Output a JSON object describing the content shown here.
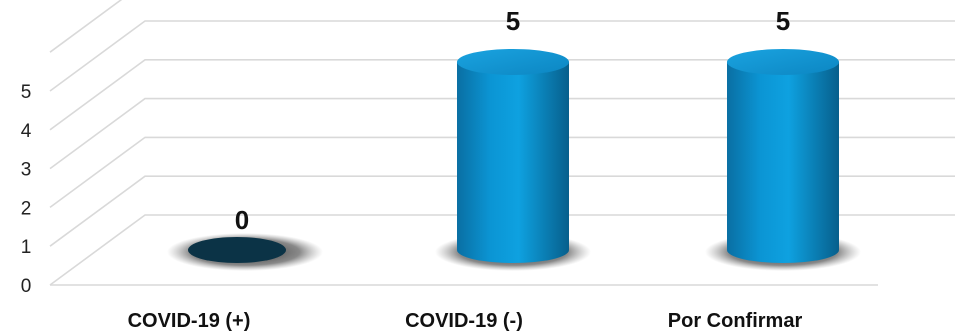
{
  "chart_data": {
    "type": "bar",
    "style": "3d-cylinder",
    "categories": [
      "COVID-19 (+)",
      "COVID-19 (-)",
      "Por Confirmar"
    ],
    "values": [
      0,
      5,
      5
    ],
    "data_labels": [
      "0",
      "5",
      "5"
    ],
    "y_ticks": [
      "0",
      "1",
      "2",
      "3",
      "4",
      "5"
    ],
    "ylim": [
      0,
      5.5
    ],
    "grid": true,
    "legend": "none",
    "colors": {
      "bar": "#0b8fcf",
      "bar_dark": "#00344a",
      "bar_top": "#1796d4",
      "zero_bar": "#0b3346",
      "grid": "#d9d9d9",
      "shadow": "#2a2a2a"
    }
  }
}
